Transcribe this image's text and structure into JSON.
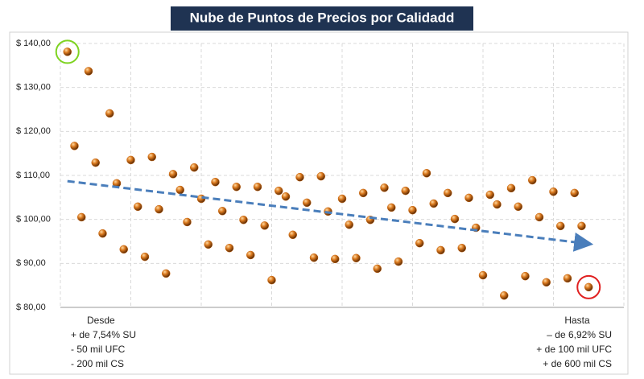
{
  "chart_data": {
    "type": "scatter",
    "title": "Nube de Puntos de Precios por Calidadd",
    "x": [
      1,
      2,
      3,
      4,
      5,
      6,
      7,
      8,
      9,
      10,
      11,
      12,
      13,
      14,
      15,
      16,
      17,
      18,
      19,
      20,
      21,
      22,
      23,
      24,
      25,
      26,
      27,
      28,
      29,
      30,
      31,
      32,
      33,
      34,
      35,
      36,
      37,
      38,
      39,
      40,
      41,
      42,
      43,
      44,
      45,
      46,
      47,
      48,
      49,
      50,
      51,
      52,
      53,
      54,
      55,
      56,
      57,
      58,
      59,
      60,
      61,
      62,
      63,
      64,
      65,
      66,
      67,
      68,
      69,
      70,
      71,
      72,
      73,
      74,
      75
    ],
    "values": [
      138.1,
      116.7,
      100.5,
      133.7,
      112.9,
      96.8,
      124.1,
      108.2,
      93.2,
      113.5,
      102.9,
      91.5,
      114.2,
      102.3,
      87.7,
      110.3,
      106.7,
      99.4,
      111.8,
      104.7,
      94.3,
      108.5,
      101.9,
      93.5,
      107.4,
      99.9,
      91.9,
      107.4,
      98.6,
      86.2,
      106.5,
      105.2,
      96.5,
      109.6,
      103.8,
      91.3,
      109.8,
      101.8,
      91.0,
      104.7,
      98.8,
      91.2,
      106.0,
      99.9,
      88.8,
      107.2,
      102.7,
      90.4,
      106.5,
      102.1,
      94.6,
      110.5,
      103.6,
      93.0,
      106.0,
      100.1,
      93.5,
      104.9,
      98.1,
      87.3,
      105.6,
      103.4,
      82.7,
      107.1,
      102.9,
      87.1,
      108.9,
      100.5,
      85.7,
      106.3,
      98.5,
      86.6,
      106.0,
      98.5,
      84.6
    ],
    "color": "#c8650f",
    "xlim": [
      0,
      80
    ],
    "xticks": [
      0,
      10,
      20,
      30,
      40,
      50,
      60,
      70,
      80
    ],
    "ylim": [
      80,
      140
    ],
    "yticks": [
      {
        "value": 80,
        "label": "$ 80,00"
      },
      {
        "value": 90,
        "label": "$ 90,00"
      },
      {
        "value": 100,
        "label": "$ 100,00"
      },
      {
        "value": 110,
        "label": "$ 110,00"
      },
      {
        "value": 120,
        "label": "$ 120,00"
      },
      {
        "value": 130,
        "label": "$ 130,00"
      },
      {
        "value": 140,
        "label": "$ 140,00"
      }
    ],
    "grid": true,
    "trendline": {
      "x": [
        1,
        75
      ],
      "values": [
        108.7,
        94.4
      ],
      "color": "#4a7ebb"
    },
    "highlight_first_color": "#7ed321",
    "highlight_last_color": "#e02020",
    "annotations": {
      "left": [
        "Desde",
        "+ de 7,54% SU",
        "- 50 mil UFC",
        " - 200 mil CS"
      ],
      "right": [
        "Hasta",
        "–  de 6,92% SU",
        "+ de 100 mil UFC",
        "+ de 600 mil CS"
      ]
    }
  }
}
